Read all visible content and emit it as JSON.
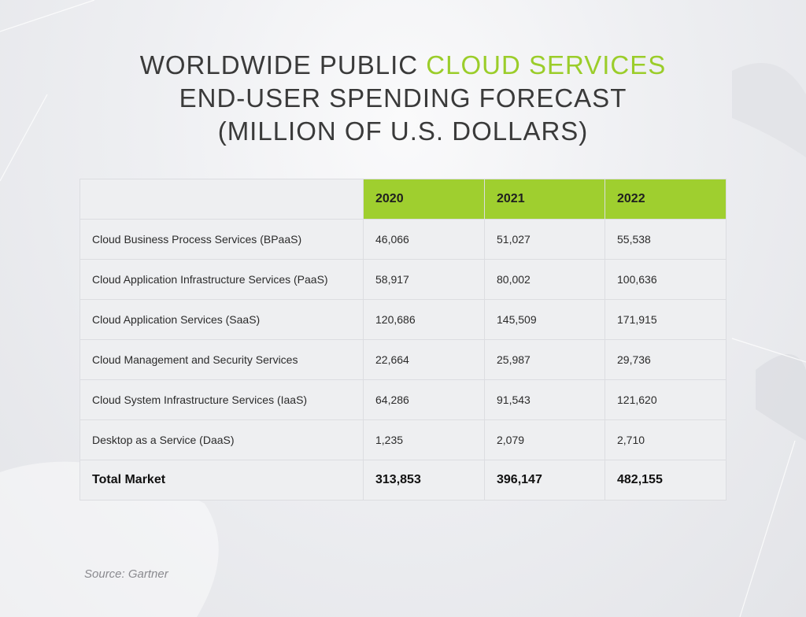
{
  "title": {
    "line1_prefix": "WORLDWIDE PUBLIC ",
    "line1_accent": "CLOUD SERVICES",
    "line2": "END-USER SPENDING FORECAST",
    "line3": "(MILLION OF U.S. DOLLARS)"
  },
  "colors": {
    "accent": "#9bcd2a",
    "header_bg": "#9fcf2f",
    "cell_bg": "#eeeff1",
    "text": "#3a3a3a"
  },
  "source": "Source: Gartner",
  "chart_data": {
    "type": "table",
    "title": "WORLDWIDE PUBLIC CLOUD SERVICES END-USER SPENDING FORECAST (MILLION OF U.S. DOLLARS)",
    "columns": [
      "",
      "2020",
      "2021",
      "2022"
    ],
    "rows": [
      {
        "label": "Cloud Business Process Services (BPaaS)",
        "values": [
          "46,066",
          "51,027",
          "55,538"
        ]
      },
      {
        "label": "Cloud Application Infrastructure Services (PaaS)",
        "values": [
          "58,917",
          "80,002",
          "100,636"
        ]
      },
      {
        "label": "Cloud Application Services (SaaS)",
        "values": [
          "120,686",
          "145,509",
          "171,915"
        ]
      },
      {
        "label": "Cloud Management and Security Services",
        "values": [
          "22,664",
          "25,987",
          "29,736"
        ]
      },
      {
        "label": "Cloud System Infrastructure Services (IaaS)",
        "values": [
          "64,286",
          "91,543",
          "121,620"
        ]
      },
      {
        "label": "Desktop as a Service (DaaS)",
        "values": [
          "1,235",
          "2,079",
          "2,710"
        ]
      }
    ],
    "total": {
      "label": "Total Market",
      "values": [
        "313,853",
        "396,147",
        "482,155"
      ]
    }
  }
}
